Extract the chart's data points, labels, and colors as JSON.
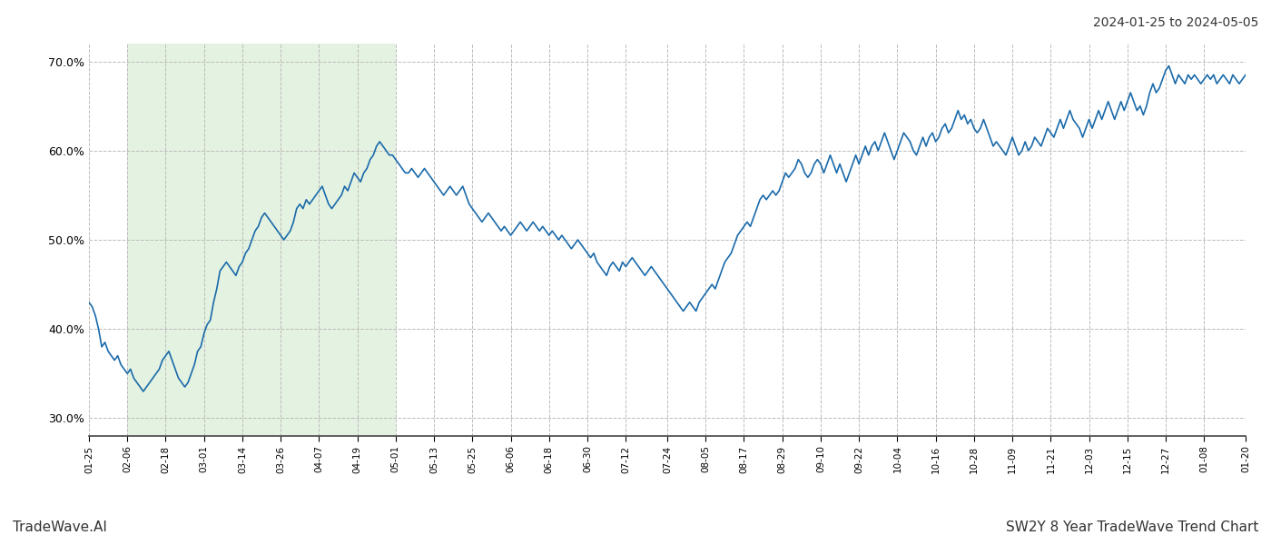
{
  "title_top_right": "2024-01-25 to 2024-05-05",
  "title_bottom_right": "SW2Y 8 Year TradeWave Trend Chart",
  "title_bottom_left": "TradeWave.AI",
  "ylim": [
    28.0,
    72.0
  ],
  "yticks": [
    30.0,
    40.0,
    50.0,
    60.0,
    70.0
  ],
  "bg_color": "#ffffff",
  "line_color": "#1a6aaa",
  "shade_color": "#d6ecd2",
  "shade_alpha": 0.65,
  "grid_color": "#bbbbbb",
  "grid_style": "--",
  "x_labels": [
    "01-25",
    "02-06",
    "02-18",
    "03-01",
    "03-14",
    "03-26",
    "04-07",
    "04-19",
    "05-01",
    "05-13",
    "05-25",
    "06-06",
    "06-18",
    "06-30",
    "07-12",
    "07-24",
    "08-05",
    "08-17",
    "08-29",
    "09-10",
    "09-22",
    "10-04",
    "10-16",
    "10-28",
    "11-09",
    "11-21",
    "12-03",
    "12-15",
    "12-27",
    "01-08",
    "01-20"
  ],
  "shade_start_label": "02-06",
  "shade_end_label": "05-01",
  "y_values": [
    43.0,
    42.5,
    41.5,
    40.0,
    38.0,
    38.5,
    37.5,
    37.0,
    36.5,
    37.0,
    36.0,
    35.5,
    35.0,
    35.5,
    34.5,
    34.0,
    33.5,
    33.0,
    33.5,
    34.0,
    34.5,
    35.0,
    35.5,
    36.5,
    37.0,
    37.5,
    36.5,
    35.5,
    34.5,
    34.0,
    33.5,
    34.0,
    35.0,
    36.0,
    37.5,
    38.0,
    39.5,
    40.5,
    41.0,
    43.0,
    44.5,
    46.5,
    47.0,
    47.5,
    47.0,
    46.5,
    46.0,
    47.0,
    47.5,
    48.5,
    49.0,
    50.0,
    51.0,
    51.5,
    52.5,
    53.0,
    52.5,
    52.0,
    51.5,
    51.0,
    50.5,
    50.0,
    50.5,
    51.0,
    52.0,
    53.5,
    54.0,
    53.5,
    54.5,
    54.0,
    54.5,
    55.0,
    55.5,
    56.0,
    55.0,
    54.0,
    53.5,
    54.0,
    54.5,
    55.0,
    56.0,
    55.5,
    56.5,
    57.5,
    57.0,
    56.5,
    57.5,
    58.0,
    59.0,
    59.5,
    60.5,
    61.0,
    60.5,
    60.0,
    59.5,
    59.5,
    59.0,
    58.5,
    58.0,
    57.5,
    57.5,
    58.0,
    57.5,
    57.0,
    57.5,
    58.0,
    57.5,
    57.0,
    56.5,
    56.0,
    55.5,
    55.0,
    55.5,
    56.0,
    55.5,
    55.0,
    55.5,
    56.0,
    55.0,
    54.0,
    53.5,
    53.0,
    52.5,
    52.0,
    52.5,
    53.0,
    52.5,
    52.0,
    51.5,
    51.0,
    51.5,
    51.0,
    50.5,
    51.0,
    51.5,
    52.0,
    51.5,
    51.0,
    51.5,
    52.0,
    51.5,
    51.0,
    51.5,
    51.0,
    50.5,
    51.0,
    50.5,
    50.0,
    50.5,
    50.0,
    49.5,
    49.0,
    49.5,
    50.0,
    49.5,
    49.0,
    48.5,
    48.0,
    48.5,
    47.5,
    47.0,
    46.5,
    46.0,
    47.0,
    47.5,
    47.0,
    46.5,
    47.5,
    47.0,
    47.5,
    48.0,
    47.5,
    47.0,
    46.5,
    46.0,
    46.5,
    47.0,
    46.5,
    46.0,
    45.5,
    45.0,
    44.5,
    44.0,
    43.5,
    43.0,
    42.5,
    42.0,
    42.5,
    43.0,
    42.5,
    42.0,
    43.0,
    43.5,
    44.0,
    44.5,
    45.0,
    44.5,
    45.5,
    46.5,
    47.5,
    48.0,
    48.5,
    49.5,
    50.5,
    51.0,
    51.5,
    52.0,
    51.5,
    52.5,
    53.5,
    54.5,
    55.0,
    54.5,
    55.0,
    55.5,
    55.0,
    55.5,
    56.5,
    57.5,
    57.0,
    57.5,
    58.0,
    59.0,
    58.5,
    57.5,
    57.0,
    57.5,
    58.5,
    59.0,
    58.5,
    57.5,
    58.5,
    59.5,
    58.5,
    57.5,
    58.5,
    57.5,
    56.5,
    57.5,
    58.5,
    59.5,
    58.5,
    59.5,
    60.5,
    59.5,
    60.5,
    61.0,
    60.0,
    61.0,
    62.0,
    61.0,
    60.0,
    59.0,
    60.0,
    61.0,
    62.0,
    61.5,
    61.0,
    60.0,
    59.5,
    60.5,
    61.5,
    60.5,
    61.5,
    62.0,
    61.0,
    61.5,
    62.5,
    63.0,
    62.0,
    62.5,
    63.5,
    64.5,
    63.5,
    64.0,
    63.0,
    63.5,
    62.5,
    62.0,
    62.5,
    63.5,
    62.5,
    61.5,
    60.5,
    61.0,
    60.5,
    60.0,
    59.5,
    60.5,
    61.5,
    60.5,
    59.5,
    60.0,
    61.0,
    60.0,
    60.5,
    61.5,
    61.0,
    60.5,
    61.5,
    62.5,
    62.0,
    61.5,
    62.5,
    63.5,
    62.5,
    63.5,
    64.5,
    63.5,
    63.0,
    62.5,
    61.5,
    62.5,
    63.5,
    62.5,
    63.5,
    64.5,
    63.5,
    64.5,
    65.5,
    64.5,
    63.5,
    64.5,
    65.5,
    64.5,
    65.5,
    66.5,
    65.5,
    64.5,
    65.0,
    64.0,
    65.0,
    66.5,
    67.5,
    66.5,
    67.0,
    68.0,
    69.0,
    69.5,
    68.5,
    67.5,
    68.5,
    68.0,
    67.5,
    68.5,
    68.0,
    68.5,
    68.0,
    67.5,
    68.0,
    68.5,
    68.0,
    68.5,
    67.5,
    68.0,
    68.5,
    68.0,
    67.5,
    68.5,
    68.0,
    67.5,
    68.0,
    68.5
  ]
}
